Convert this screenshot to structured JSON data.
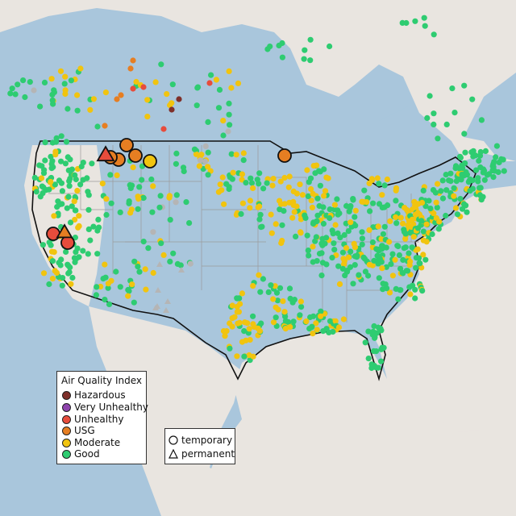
{
  "legend": {
    "title": "Air Quality Index",
    "categories": [
      {
        "label": "Hazardous",
        "color": "#7e2f2a"
      },
      {
        "label": "Very Unhealthy",
        "color": "#8e44ad"
      },
      {
        "label": "Unhealthy",
        "color": "#e74c3c"
      },
      {
        "label": "USG",
        "color": "#e67e22"
      },
      {
        "label": "Moderate",
        "color": "#f1c40f"
      },
      {
        "label": "Good",
        "color": "#2ecc71"
      }
    ]
  },
  "monitor_types": {
    "temporary_label": "temporary",
    "permanent_label": "permanent",
    "temporary_icon": "circle-icon",
    "permanent_icon": "triangle-icon"
  },
  "colors": {
    "land": "#e9e5e0",
    "water": "#a9c6dc",
    "border": "#111111",
    "state_lines": "#9a9a9a",
    "no_data": "#b5b5b5"
  },
  "highlighted_monitors": [
    {
      "type": "permanent",
      "category": "Unhealthy",
      "region": "Montana"
    },
    {
      "type": "temporary",
      "category": "USG",
      "region": "Montana"
    },
    {
      "type": "temporary",
      "category": "Moderate",
      "region": "Montana"
    },
    {
      "type": "temporary",
      "category": "USG",
      "region": "Minnesota"
    },
    {
      "type": "permanent",
      "category": "USG",
      "region": "California"
    },
    {
      "type": "temporary",
      "category": "Unhealthy",
      "region": "California"
    }
  ]
}
